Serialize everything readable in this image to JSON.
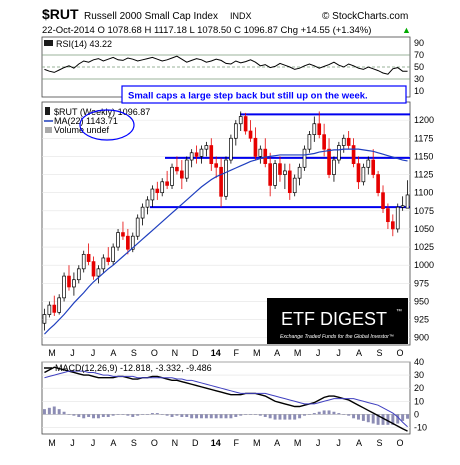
{
  "header": {
    "symbol": "$RUT",
    "name": "Russell 2000 Small Cap Index",
    "exchange": "INDX",
    "copyright": "© StockCharts.com",
    "quote_line": "22-Oct-2014  O 1078.68  H 1117.18  L 1078.50  C 1096.87  Chg +14.55 (+1.34%)",
    "quote_arrow": "▲"
  },
  "annotation": "Small caps a large step back but still up on the week.",
  "logo": {
    "title": "ETF DIGEST",
    "trademark": "™",
    "tagline": "Exchange Traded Funds for the Global Investor™"
  },
  "colors": {
    "price_line": "#0000cc",
    "ma_line": "#1f3fbf",
    "down_candle": "#e60000",
    "up_candle": "#000000",
    "indicator_fill": "#8fa3d6",
    "horizontal_lines": "#0000ee",
    "annotation_text": "#0000ff",
    "histogram": "#8c8cb4"
  },
  "chart_data": [
    {
      "type": "line",
      "panel": "RSI",
      "legend": "RSI(14) 43.22",
      "ylim": [
        0,
        100
      ],
      "ticks": [
        10,
        30,
        50,
        70,
        90
      ],
      "reference_lines": [
        30,
        50,
        70
      ],
      "x": [
        0,
        1,
        2,
        3,
        4,
        5,
        6,
        7,
        8,
        9,
        10,
        11,
        12,
        13,
        14,
        15,
        16,
        17,
        18,
        19,
        20,
        21,
        22,
        23,
        24,
        25,
        26,
        27,
        28,
        29,
        30,
        31,
        32,
        33,
        34,
        35,
        36,
        37,
        38,
        39,
        40,
        41,
        42,
        43,
        44,
        45,
        46,
        47,
        48,
        49,
        50,
        51,
        52,
        53,
        54,
        55,
        56,
        57,
        58,
        59,
        60,
        61,
        62,
        63,
        64,
        65,
        66,
        67,
        68,
        69,
        70,
        71,
        72,
        73,
        74
      ],
      "values": [
        46,
        43,
        41,
        45,
        49,
        52,
        48,
        55,
        60,
        58,
        62,
        64,
        60,
        63,
        66,
        62,
        61,
        65,
        63,
        60,
        62,
        64,
        66,
        63,
        60,
        62,
        65,
        68,
        63,
        58,
        61,
        64,
        62,
        58,
        60,
        63,
        61,
        56,
        55,
        60,
        57,
        59,
        62,
        58,
        52,
        54,
        49,
        51,
        56,
        53,
        50,
        46,
        48,
        52,
        55,
        52,
        48,
        51,
        54,
        58,
        53,
        50,
        55,
        52,
        48,
        46,
        50,
        47,
        44,
        40,
        38,
        47,
        49,
        43,
        43
      ]
    },
    {
      "type": "candlestick",
      "panel": "price",
      "legend": [
        {
          "label": "$RUT (Weekly) 1096.87",
          "style": "candle"
        },
        {
          "label": "MA(22) 1143.71",
          "style": "line"
        },
        {
          "label": "Volume undef",
          "style": "bar"
        }
      ],
      "ylim": [
        890,
        1225
      ],
      "y_ticks": [
        900,
        925,
        950,
        975,
        1000,
        1025,
        1050,
        1075,
        1100,
        1125,
        1150,
        1175,
        1200
      ],
      "x_labels": [
        "M",
        "J",
        "J",
        "A",
        "S",
        "O",
        "N",
        "D",
        "14",
        "F",
        "M",
        "A",
        "M",
        "J",
        "J",
        "A",
        "S",
        "O"
      ],
      "support_resistance_lines": [
        1208,
        1148,
        1080
      ],
      "ohlc": [
        [
          920,
          940,
          910,
          932
        ],
        [
          932,
          950,
          928,
          945
        ],
        [
          945,
          958,
          930,
          935
        ],
        [
          935,
          960,
          932,
          955
        ],
        [
          955,
          990,
          950,
          985
        ],
        [
          985,
          1000,
          965,
          970
        ],
        [
          970,
          990,
          958,
          980
        ],
        [
          980,
          1000,
          975,
          995
        ],
        [
          995,
          1020,
          990,
          1015
        ],
        [
          1015,
          1030,
          1000,
          1005
        ],
        [
          1005,
          1012,
          980,
          985
        ],
        [
          985,
          1000,
          975,
          995
        ],
        [
          995,
          1015,
          990,
          1010
        ],
        [
          1010,
          1025,
          1000,
          1005
        ],
        [
          1005,
          1030,
          1000,
          1025
        ],
        [
          1025,
          1050,
          1020,
          1045
        ],
        [
          1045,
          1060,
          1035,
          1040
        ],
        [
          1040,
          1050,
          1015,
          1022
        ],
        [
          1022,
          1045,
          1018,
          1040
        ],
        [
          1040,
          1070,
          1035,
          1065
        ],
        [
          1065,
          1085,
          1055,
          1080
        ],
        [
          1080,
          1095,
          1070,
          1090
        ],
        [
          1090,
          1110,
          1080,
          1105
        ],
        [
          1105,
          1115,
          1090,
          1100
        ],
        [
          1100,
          1120,
          1095,
          1115
        ],
        [
          1115,
          1130,
          1105,
          1110
        ],
        [
          1110,
          1140,
          1105,
          1135
        ],
        [
          1135,
          1150,
          1125,
          1130
        ],
        [
          1130,
          1145,
          1105,
          1120
        ],
        [
          1120,
          1150,
          1115,
          1145
        ],
        [
          1145,
          1160,
          1135,
          1155
        ],
        [
          1155,
          1165,
          1140,
          1150
        ],
        [
          1150,
          1165,
          1140,
          1160
        ],
        [
          1160,
          1170,
          1150,
          1165
        ],
        [
          1165,
          1175,
          1130,
          1140
        ],
        [
          1140,
          1150,
          1120,
          1135
        ],
        [
          1135,
          1148,
          1080,
          1095
        ],
        [
          1095,
          1150,
          1090,
          1145
        ],
        [
          1145,
          1180,
          1140,
          1175
        ],
        [
          1175,
          1200,
          1165,
          1195
        ],
        [
          1195,
          1212,
          1185,
          1205
        ],
        [
          1205,
          1210,
          1180,
          1185
        ],
        [
          1185,
          1200,
          1170,
          1175
        ],
        [
          1175,
          1190,
          1145,
          1150
        ],
        [
          1150,
          1165,
          1140,
          1160
        ],
        [
          1160,
          1175,
          1135,
          1140
        ],
        [
          1140,
          1155,
          1095,
          1110
        ],
        [
          1110,
          1145,
          1105,
          1140
        ],
        [
          1140,
          1150,
          1115,
          1125
        ],
        [
          1125,
          1140,
          1105,
          1130
        ],
        [
          1130,
          1140,
          1090,
          1100
        ],
        [
          1100,
          1125,
          1095,
          1120
        ],
        [
          1120,
          1140,
          1110,
          1135
        ],
        [
          1135,
          1165,
          1130,
          1160
        ],
        [
          1160,
          1185,
          1155,
          1180
        ],
        [
          1180,
          1205,
          1170,
          1195
        ],
        [
          1195,
          1212,
          1175,
          1180
        ],
        [
          1180,
          1195,
          1150,
          1160
        ],
        [
          1160,
          1175,
          1120,
          1125
        ],
        [
          1125,
          1150,
          1115,
          1145
        ],
        [
          1145,
          1170,
          1140,
          1165
        ],
        [
          1165,
          1180,
          1155,
          1175
        ],
        [
          1175,
          1185,
          1160,
          1165
        ],
        [
          1165,
          1175,
          1135,
          1140
        ],
        [
          1140,
          1150,
          1105,
          1115
        ],
        [
          1115,
          1140,
          1110,
          1135
        ],
        [
          1135,
          1150,
          1125,
          1145
        ],
        [
          1145,
          1160,
          1120,
          1125
        ],
        [
          1125,
          1130,
          1095,
          1100
        ],
        [
          1100,
          1110,
          1072,
          1078
        ],
        [
          1078,
          1085,
          1050,
          1060
        ],
        [
          1060,
          1070,
          1040,
          1050
        ],
        [
          1050,
          1085,
          1045,
          1080
        ],
        [
          1080,
          1095,
          1075,
          1082
        ],
        [
          1078.68,
          1117.18,
          1078.5,
          1096.87
        ]
      ],
      "ma22": [
        905,
        912,
        918,
        925,
        932,
        940,
        948,
        955,
        962,
        970,
        977,
        983,
        989,
        995,
        1000,
        1006,
        1012,
        1018,
        1024,
        1030,
        1036,
        1042,
        1048,
        1054,
        1060,
        1066,
        1072,
        1078,
        1084,
        1090,
        1096,
        1102,
        1108,
        1113,
        1118,
        1122,
        1125,
        1128,
        1131,
        1134,
        1137,
        1140,
        1143,
        1145,
        1147,
        1149,
        1150,
        1151,
        1152,
        1152,
        1152,
        1152,
        1152,
        1152,
        1153,
        1154,
        1156,
        1157,
        1158,
        1159,
        1159,
        1160,
        1160,
        1160,
        1160,
        1159,
        1158,
        1157,
        1155,
        1153,
        1151,
        1149,
        1147,
        1145,
        1143.71
      ]
    },
    {
      "type": "line",
      "panel": "MACD",
      "legend": "MACD(12,26,9) -12.818, -3.332, -9.486",
      "ylim": [
        -15,
        40
      ],
      "ticks": [
        -10,
        0,
        10,
        20,
        30,
        40
      ],
      "x_labels": [
        "M",
        "J",
        "J",
        "A",
        "S",
        "O",
        "N",
        "D",
        "14",
        "F",
        "M",
        "A",
        "M",
        "J",
        "J",
        "A",
        "S",
        "O"
      ],
      "series": [
        {
          "name": "MACD",
          "values": [
            32,
            34,
            36,
            35,
            34,
            33,
            32,
            31,
            30,
            30,
            29,
            28,
            28,
            28,
            28,
            29,
            29,
            28,
            27,
            27,
            28,
            28,
            29,
            29,
            28,
            27,
            26,
            26,
            25,
            24,
            23,
            22,
            21,
            20,
            19,
            18,
            17,
            16,
            15,
            15,
            15,
            16,
            16,
            16,
            15,
            14,
            12,
            10,
            9,
            8,
            7,
            6,
            6,
            7,
            8,
            9,
            11,
            13,
            14,
            14,
            13,
            12,
            11,
            9,
            7,
            5,
            3,
            1,
            -1,
            -3,
            -5,
            -7,
            -9,
            -11,
            -12.818
          ]
        },
        {
          "name": "Signal",
          "values": [
            28,
            29,
            30,
            31,
            32,
            33,
            33,
            33,
            33,
            32,
            32,
            31,
            30,
            30,
            29,
            29,
            29,
            29,
            29,
            28,
            28,
            28,
            28,
            28,
            28,
            28,
            28,
            27,
            27,
            26,
            26,
            25,
            24,
            23,
            22,
            21,
            20,
            19,
            18,
            17,
            16,
            16,
            16,
            16,
            16,
            16,
            15,
            14,
            13,
            12,
            11,
            10,
            9,
            8,
            8,
            8,
            9,
            10,
            11,
            12,
            12,
            12,
            12,
            12,
            11,
            10,
            9,
            8,
            7,
            5,
            3,
            1,
            -2,
            -6,
            -9.486
          ]
        },
        {
          "name": "Histogram",
          "values": [
            4,
            5,
            6,
            4,
            2,
            0,
            -1,
            -2,
            -3,
            -2,
            -3,
            -3,
            -2,
            -2,
            -1,
            0,
            0,
            -1,
            -2,
            -1,
            0,
            0,
            1,
            1,
            0,
            -1,
            -2,
            -1,
            -2,
            -2,
            -3,
            -3,
            -3,
            -3,
            -3,
            -3,
            -3,
            -3,
            -3,
            -2,
            -1,
            0,
            0,
            0,
            -1,
            -2,
            -3,
            -4,
            -4,
            -4,
            -4,
            -4,
            -3,
            -1,
            0,
            1,
            2,
            3,
            3,
            2,
            1,
            0,
            -1,
            -3,
            -4,
            -5,
            -6,
            -7,
            -8,
            -8,
            -8,
            -8,
            -7,
            -5,
            -3.332
          ]
        }
      ]
    }
  ]
}
